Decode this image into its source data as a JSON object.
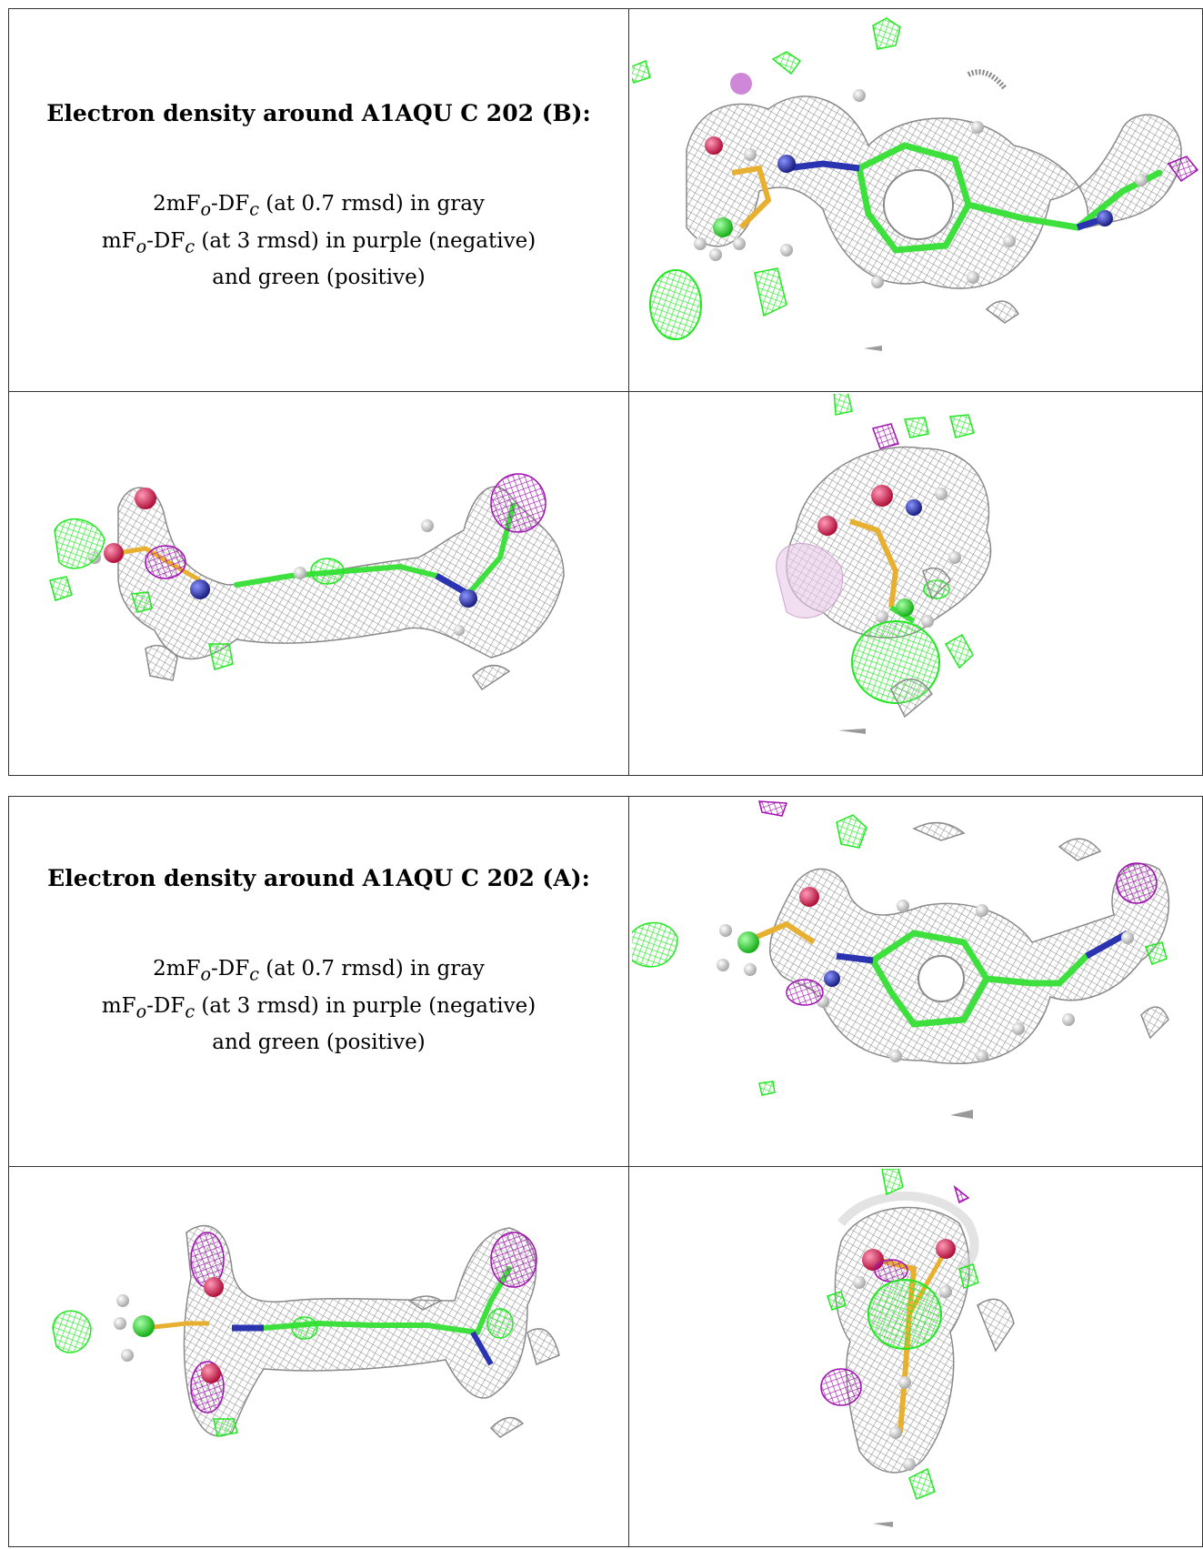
{
  "panels": [
    {
      "title": "Electron density around A1AQU C 202 (B):",
      "legend": {
        "line1_pre": "2mF",
        "line1_sub1": "o",
        "line1_mid": "-DF",
        "line1_sub2": "c",
        "line1_post": " (at 0.7 rmsd) in gray",
        "line2_pre": "mF",
        "line2_sub1": "o",
        "line2_mid": "-DF",
        "line2_sub2": "c",
        "line2_post": " (at 3 rmsd) in purple (negative)",
        "line3": "and green (positive)"
      },
      "views": [
        "top-view",
        "side-view",
        "end-view"
      ]
    },
    {
      "title": "Electron density around A1AQU C 202 (A):",
      "legend": {
        "line1_pre": "2mF",
        "line1_sub1": "o",
        "line1_mid": "-DF",
        "line1_sub2": "c",
        "line1_post": " (at 0.7 rmsd) in gray",
        "line2_pre": "mF",
        "line2_sub1": "o",
        "line2_mid": "-DF",
        "line2_sub2": "c",
        "line2_post": " (at 3 rmsd) in purple (negative)",
        "line3": "and green (positive)"
      },
      "views": [
        "top-view",
        "side-view",
        "end-view"
      ]
    }
  ],
  "colors": {
    "mesh_gray": "#9a9a9a",
    "mesh_green": "#22e822",
    "mesh_purple": "#a010b0",
    "atom_carbon": "#33dd33",
    "atom_nitrogen": "#2a33b0",
    "atom_oxygen": "#e0205a",
    "atom_sulfur": "#e8b030",
    "atom_hydrogen": "#e8e8e8"
  }
}
